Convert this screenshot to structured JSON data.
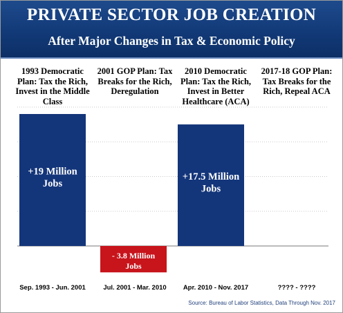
{
  "header": {
    "title": "PRIVATE SECTOR JOB CREATION",
    "subtitle": "After Major Changes in Tax & Economic Policy"
  },
  "source": "Source: Bureau of Labor Statistics, Data Through Nov. 2017",
  "chart_data": {
    "type": "bar",
    "categories": [
      "Sep. 1993 - Jun. 2001",
      "Jul. 2001 - Mar. 2010",
      "Apr. 2010 - Nov. 2017",
      "???? - ????"
    ],
    "plans": [
      "1993 Democratic Plan: Tax the Rich, Invest in the Middle Class",
      "2001 GOP Plan: Tax Breaks for the Rich, Deregulation",
      "2010 Democratic Plan: Tax the Rich, Invest in Better Healthcare (ACA)",
      "2017-18 GOP Plan: Tax Breaks for the Rich, Repeal ACA"
    ],
    "values": [
      19,
      -3.8,
      17.5,
      null
    ],
    "data_labels": [
      "+19 Million Jobs",
      "- 3.8 Million Jobs",
      "+17.5 Million Jobs",
      ""
    ],
    "colors": {
      "positive": "#13357a",
      "negative": "#c8141b"
    },
    "ylim": [
      -8,
      20
    ],
    "grid": true
  }
}
